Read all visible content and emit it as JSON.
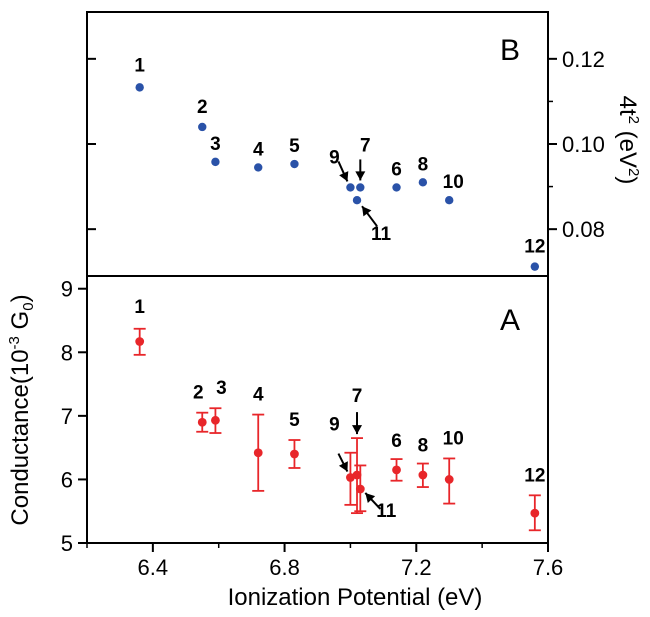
{
  "chart_data": [
    {
      "panel": "B",
      "type": "scatter",
      "xlabel": "",
      "ylabel": "4t<sup>2</sup> (eV<sup>2</sup>)",
      "ylabel_text": "4t² (eV²)",
      "xlim": [
        6.2,
        7.6
      ],
      "ylim": [
        0.069,
        0.131
      ],
      "yticks": [
        0.08,
        0.1,
        0.12
      ],
      "ytick_labels": [
        "0.08",
        "0.10",
        "0.12"
      ],
      "y_axis_side": "right",
      "marker_color": "#2a52a8",
      "points": [
        {
          "id": "1",
          "x": 6.36,
          "y": 0.1133
        },
        {
          "id": "2",
          "x": 6.55,
          "y": 0.104
        },
        {
          "id": "3",
          "x": 6.59,
          "y": 0.0958
        },
        {
          "id": "4",
          "x": 6.72,
          "y": 0.0945
        },
        {
          "id": "5",
          "x": 6.83,
          "y": 0.0953
        },
        {
          "id": "9",
          "x": 7.0,
          "y": 0.0898
        },
        {
          "id": "7",
          "x": 7.03,
          "y": 0.0898
        },
        {
          "id": "11",
          "x": 7.02,
          "y": 0.0868
        },
        {
          "id": "6",
          "x": 7.14,
          "y": 0.0898
        },
        {
          "id": "8",
          "x": 7.22,
          "y": 0.091
        },
        {
          "id": "10",
          "x": 7.3,
          "y": 0.0868
        },
        {
          "id": "12",
          "x": 7.56,
          "y": 0.0712
        }
      ]
    },
    {
      "panel": "A",
      "type": "scatter",
      "xlabel": "Ionization Potential (eV)",
      "ylabel_text": "Conductance(10⁻³ G₀)",
      "xlim": [
        6.2,
        7.6
      ],
      "ylim": [
        5.0,
        9.2
      ],
      "xticks": [
        6.4,
        6.8,
        7.2,
        7.6
      ],
      "xtick_labels": [
        "6.4",
        "6.8",
        "7.2",
        "7.6"
      ],
      "yticks": [
        5,
        6,
        7,
        8,
        9
      ],
      "ytick_labels": [
        "5",
        "6",
        "7",
        "8",
        "9"
      ],
      "y_axis_side": "left",
      "marker_color": "#e8262a",
      "points": [
        {
          "id": "1",
          "x": 6.36,
          "y": 8.17,
          "err_low": 7.96,
          "err_high": 8.37
        },
        {
          "id": "2",
          "x": 6.55,
          "y": 6.9,
          "err_low": 6.75,
          "err_high": 7.05
        },
        {
          "id": "3",
          "x": 6.59,
          "y": 6.93,
          "err_low": 6.73,
          "err_high": 7.12
        },
        {
          "id": "4",
          "x": 6.72,
          "y": 6.42,
          "err_low": 5.82,
          "err_high": 7.02
        },
        {
          "id": "5",
          "x": 6.83,
          "y": 6.4,
          "err_low": 6.18,
          "err_high": 6.62
        },
        {
          "id": "9",
          "x": 7.0,
          "y": 6.03,
          "err_low": 5.6,
          "err_high": 6.42
        },
        {
          "id": "7",
          "x": 7.02,
          "y": 6.07,
          "err_low": 5.47,
          "err_high": 6.65
        },
        {
          "id": "11",
          "x": 7.03,
          "y": 5.85,
          "err_low": 5.5,
          "err_high": 6.22
        },
        {
          "id": "6",
          "x": 7.14,
          "y": 6.15,
          "err_low": 5.98,
          "err_high": 6.32
        },
        {
          "id": "8",
          "x": 7.22,
          "y": 6.07,
          "err_low": 5.88,
          "err_high": 6.25
        },
        {
          "id": "10",
          "x": 7.3,
          "y": 6.0,
          "err_low": 5.62,
          "err_high": 6.33
        },
        {
          "id": "12",
          "x": 7.56,
          "y": 5.47,
          "err_low": 5.2,
          "err_high": 5.75
        }
      ]
    }
  ],
  "labels": {
    "panel_b": "B",
    "panel_a": "A",
    "xlabel": "Ionization Potential (eV)"
  }
}
